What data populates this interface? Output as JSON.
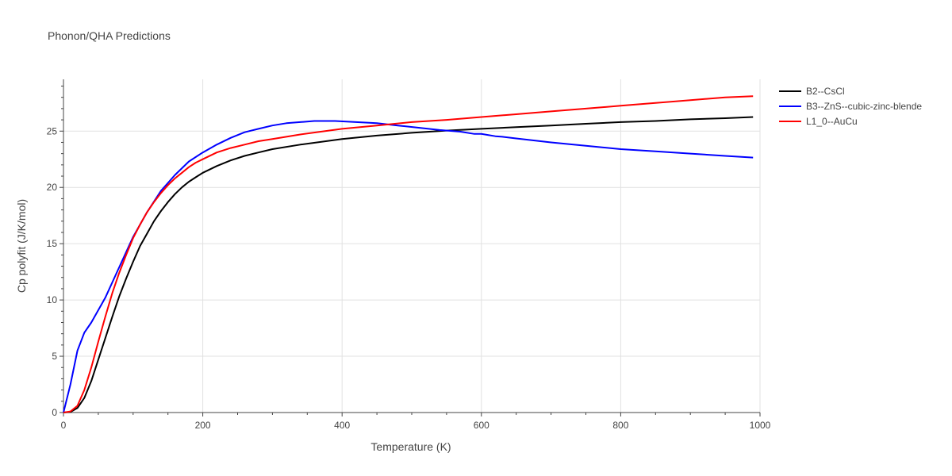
{
  "chart_data": {
    "type": "line",
    "title": "Phonon/QHA Predictions",
    "xlabel": "Temperature (K)",
    "ylabel": "Cp polyfit (J/K/mol)",
    "xlim": [
      0,
      1000
    ],
    "ylim": [
      0,
      29.6
    ],
    "x_ticks": [
      0,
      200,
      400,
      600,
      800,
      1000
    ],
    "y_ticks": [
      0,
      5,
      10,
      15,
      20,
      25
    ],
    "grid": true,
    "legend_position": "top-right",
    "series": [
      {
        "name": "B2--CsCl",
        "color": "#000000",
        "x": [
          0,
          10,
          20,
          30,
          40,
          50,
          60,
          70,
          80,
          90,
          100,
          110,
          120,
          130,
          140,
          150,
          160,
          170,
          180,
          190,
          200,
          220,
          240,
          260,
          280,
          300,
          340,
          400,
          450,
          500,
          550,
          600,
          650,
          700,
          750,
          800,
          850,
          900,
          950,
          990
        ],
        "y": [
          0,
          0.05,
          0.4,
          1.3,
          2.8,
          4.7,
          6.6,
          8.5,
          10.3,
          11.9,
          13.4,
          14.8,
          15.9,
          17.0,
          17.9,
          18.7,
          19.4,
          20.0,
          20.5,
          20.9,
          21.3,
          21.9,
          22.4,
          22.8,
          23.1,
          23.4,
          23.8,
          24.3,
          24.6,
          24.85,
          25.05,
          25.2,
          25.35,
          25.5,
          25.65,
          25.8,
          25.9,
          26.05,
          26.15,
          26.25
        ]
      },
      {
        "name": "B3--ZnS--cubic-zinc-blende",
        "color": "#0000ff",
        "x": [
          0,
          10,
          20,
          30,
          40,
          60,
          80,
          100,
          120,
          140,
          160,
          180,
          200,
          220,
          240,
          260,
          280,
          300,
          320,
          340,
          360,
          390,
          420,
          450,
          480,
          510,
          540,
          570,
          590,
          600,
          610,
          620,
          630,
          650,
          700,
          750,
          800,
          850,
          900,
          950,
          990
        ],
        "y": [
          0,
          2.5,
          5.5,
          7.1,
          8.0,
          10.2,
          12.9,
          15.6,
          17.8,
          19.7,
          21.1,
          22.3,
          23.1,
          23.8,
          24.4,
          24.9,
          25.2,
          25.5,
          25.7,
          25.8,
          25.9,
          25.9,
          25.8,
          25.7,
          25.5,
          25.3,
          25.1,
          24.95,
          24.75,
          24.75,
          24.65,
          24.55,
          24.5,
          24.35,
          24.0,
          23.7,
          23.4,
          23.2,
          23.0,
          22.8,
          22.65
        ]
      },
      {
        "name": "L1_0--AuCu",
        "color": "#ff0000",
        "x": [
          0,
          10,
          20,
          30,
          40,
          50,
          60,
          70,
          80,
          90,
          100,
          110,
          120,
          130,
          140,
          150,
          160,
          170,
          180,
          190,
          200,
          220,
          240,
          260,
          280,
          300,
          340,
          400,
          450,
          500,
          550,
          600,
          650,
          700,
          750,
          800,
          850,
          900,
          950,
          990
        ],
        "y": [
          0,
          0.1,
          0.6,
          2.0,
          4.0,
          6.3,
          8.5,
          10.6,
          12.4,
          14.0,
          15.5,
          16.7,
          17.8,
          18.7,
          19.5,
          20.2,
          20.8,
          21.3,
          21.8,
          22.2,
          22.5,
          23.1,
          23.5,
          23.8,
          24.1,
          24.3,
          24.7,
          25.2,
          25.5,
          25.8,
          26.0,
          26.25,
          26.5,
          26.75,
          27.0,
          27.25,
          27.5,
          27.75,
          28.0,
          28.1
        ]
      }
    ]
  }
}
